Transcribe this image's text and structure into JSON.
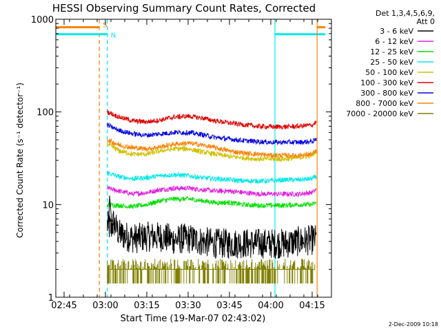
{
  "chart_data": {
    "type": "line",
    "title": "HESSI Observing Summary Count Rates, Corrected",
    "xlabel": "Start Time (19-Mar-07 02:43:02)",
    "ylabel": "Corrected Count Rate (s⁻¹ detector⁻¹)",
    "yscale": "log",
    "ylim": [
      1,
      1000
    ],
    "xlim_minutes": [
      -3.0,
      97.0
    ],
    "x_ticks": [
      {
        "label": "02:45",
        "m": 0
      },
      {
        "label": "03:00",
        "m": 15
      },
      {
        "label": "03:15",
        "m": 30
      },
      {
        "label": "03:30",
        "m": 45
      },
      {
        "label": "03:45",
        "m": 60
      },
      {
        "label": "04:00",
        "m": 75
      },
      {
        "label": "04:15",
        "m": 90
      }
    ],
    "y_ticks": [
      {
        "label": "1",
        "v": 1
      },
      {
        "label": "10",
        "v": 10
      },
      {
        "label": "100",
        "v": 100
      },
      {
        "label": "1000",
        "v": 1000
      }
    ],
    "legend_title": [
      "Det 1,3,4,5,6,9,",
      "Att 0"
    ],
    "series": [
      {
        "name": "3 - 6 keV",
        "color": "#000000",
        "start": 15.7,
        "end": 91.5,
        "points": [
          [
            15.7,
            6.0
          ],
          [
            17,
            5.5
          ],
          [
            18,
            6.5
          ],
          [
            20,
            4.8
          ],
          [
            23,
            4.5
          ],
          [
            26,
            4.3
          ],
          [
            30,
            4.5
          ],
          [
            35,
            4.5
          ],
          [
            40,
            4.2
          ],
          [
            45,
            4.3
          ],
          [
            50,
            4.0
          ],
          [
            55,
            3.8
          ],
          [
            60,
            3.8
          ],
          [
            65,
            3.8
          ],
          [
            70,
            3.8
          ],
          [
            75,
            3.8
          ],
          [
            80,
            3.8
          ],
          [
            85,
            4.0
          ],
          [
            91.5,
            4.2
          ]
        ]
      },
      {
        "name": "6 - 12 keV",
        "color": "#e020e0",
        "start": 15.7,
        "end": 91.5,
        "points": [
          [
            15.7,
            15.0
          ],
          [
            20,
            14.0
          ],
          [
            25,
            13.0
          ],
          [
            30,
            13.5
          ],
          [
            35,
            14.5
          ],
          [
            40,
            15.0
          ],
          [
            45,
            15.0
          ],
          [
            50,
            14.5
          ],
          [
            55,
            14.0
          ],
          [
            60,
            14.0
          ],
          [
            65,
            13.5
          ],
          [
            70,
            13.0
          ],
          [
            75,
            13.0
          ],
          [
            80,
            13.0
          ],
          [
            85,
            13.0
          ],
          [
            90,
            13.5
          ],
          [
            91.5,
            14.5
          ]
        ]
      },
      {
        "name": "12 - 25 keV",
        "color": "#00e000",
        "start": 15.7,
        "end": 91.5,
        "points": [
          [
            15.7,
            10.0
          ],
          [
            20,
            9.8
          ],
          [
            25,
            9.5
          ],
          [
            30,
            10.0
          ],
          [
            35,
            11.0
          ],
          [
            40,
            11.5
          ],
          [
            45,
            11.5
          ],
          [
            50,
            11.0
          ],
          [
            55,
            10.5
          ],
          [
            60,
            10.5
          ],
          [
            65,
            10.0
          ],
          [
            70,
            9.8
          ],
          [
            75,
            9.8
          ],
          [
            80,
            9.8
          ],
          [
            85,
            10.0
          ],
          [
            90,
            10.0
          ],
          [
            91.5,
            10.5
          ]
        ]
      },
      {
        "name": "25 - 50 keV",
        "color": "#00e8e8",
        "start": 15.7,
        "end": 91.5,
        "points": [
          [
            15.7,
            22.0
          ],
          [
            20,
            20.0
          ],
          [
            25,
            19.0
          ],
          [
            30,
            19.5
          ],
          [
            35,
            20.5
          ],
          [
            40,
            21.0
          ],
          [
            45,
            20.5
          ],
          [
            50,
            19.5
          ],
          [
            55,
            19.0
          ],
          [
            60,
            18.5
          ],
          [
            65,
            18.0
          ],
          [
            70,
            18.0
          ],
          [
            75,
            18.0
          ],
          [
            80,
            18.5
          ],
          [
            85,
            18.5
          ],
          [
            90,
            19.0
          ],
          [
            91.5,
            20.0
          ]
        ]
      },
      {
        "name": "50 - 100 keV",
        "color": "#d0c000",
        "start": 15.7,
        "end": 91.5,
        "points": [
          [
            15.7,
            45.0
          ],
          [
            20,
            38.0
          ],
          [
            25,
            35.0
          ],
          [
            30,
            35.0
          ],
          [
            35,
            38.0
          ],
          [
            40,
            40.0
          ],
          [
            45,
            40.0
          ],
          [
            50,
            37.0
          ],
          [
            55,
            35.0
          ],
          [
            60,
            33.0
          ],
          [
            65,
            32.0
          ],
          [
            70,
            31.0
          ],
          [
            75,
            31.0
          ],
          [
            80,
            31.0
          ],
          [
            85,
            32.0
          ],
          [
            90,
            34.0
          ],
          [
            91.5,
            38.0
          ]
        ]
      },
      {
        "name": "100 - 300 keV",
        "color": "#e00000",
        "start": 15.7,
        "end": 91.5,
        "points": [
          [
            15.7,
            100.0
          ],
          [
            20,
            88.0
          ],
          [
            25,
            80.0
          ],
          [
            30,
            78.0
          ],
          [
            35,
            82.0
          ],
          [
            40,
            88.0
          ],
          [
            45,
            90.0
          ],
          [
            50,
            86.0
          ],
          [
            55,
            80.0
          ],
          [
            60,
            76.0
          ],
          [
            65,
            73.0
          ],
          [
            70,
            70.0
          ],
          [
            75,
            69.0
          ],
          [
            80,
            69.0
          ],
          [
            85,
            70.0
          ],
          [
            90,
            72.0
          ],
          [
            91.5,
            78.0
          ]
        ]
      },
      {
        "name": "300 - 800 keV",
        "color": "#0000e0",
        "start": 15.7,
        "end": 91.5,
        "points": [
          [
            15.7,
            72.0
          ],
          [
            20,
            63.0
          ],
          [
            25,
            58.0
          ],
          [
            30,
            56.0
          ],
          [
            35,
            58.0
          ],
          [
            40,
            60.0
          ],
          [
            45,
            60.0
          ],
          [
            50,
            57.0
          ],
          [
            55,
            53.0
          ],
          [
            60,
            51.0
          ],
          [
            65,
            49.0
          ],
          [
            70,
            48.0
          ],
          [
            75,
            47.0
          ],
          [
            80,
            47.0
          ],
          [
            85,
            47.0
          ],
          [
            90,
            48.0
          ],
          [
            91.5,
            50.0
          ]
        ]
      },
      {
        "name": "800 - 7000 keV",
        "color": "#ff8000",
        "start": 15.7,
        "end": 91.5,
        "points": [
          [
            15.7,
            50.0
          ],
          [
            20,
            44.0
          ],
          [
            25,
            41.0
          ],
          [
            30,
            40.0
          ],
          [
            35,
            42.0
          ],
          [
            40,
            45.0
          ],
          [
            45,
            46.0
          ],
          [
            50,
            44.0
          ],
          [
            55,
            41.0
          ],
          [
            60,
            38.0
          ],
          [
            65,
            36.0
          ],
          [
            70,
            35.0
          ],
          [
            75,
            34.0
          ],
          [
            80,
            34.0
          ],
          [
            85,
            34.0
          ],
          [
            90,
            35.0
          ],
          [
            91.5,
            38.0
          ]
        ]
      },
      {
        "name": "7000 - 20000 keV",
        "color": "#808000",
        "start": 15.7,
        "end": 91.0,
        "points": [
          [
            15.7,
            2.0
          ],
          [
            91.0,
            2.0
          ]
        ]
      }
    ],
    "event_markers": [
      {
        "label": "S",
        "color": "#ff8000",
        "m": 12.8,
        "bar_from": -3.0,
        "bar_to": 12.8,
        "bar_value": 820
      },
      {
        "label": "N",
        "color": "#00e8e8",
        "m": 15.7,
        "bar_from": -3.0,
        "bar_to": 15.7,
        "bar_value": 690
      },
      {
        "label": "",
        "color": "#00e8e8",
        "m": 76.5,
        "bar_from": 76.5,
        "bar_to": 94.8,
        "bar_value": 690
      },
      {
        "label": "",
        "color": "#ff8000",
        "m": 91.8,
        "bar_from": 91.8,
        "bar_to": 94.8,
        "bar_value": 820
      }
    ],
    "grid": false,
    "legend_position": "top-right"
  },
  "footer": {
    "date": "2-Dec-2009 10:18"
  }
}
